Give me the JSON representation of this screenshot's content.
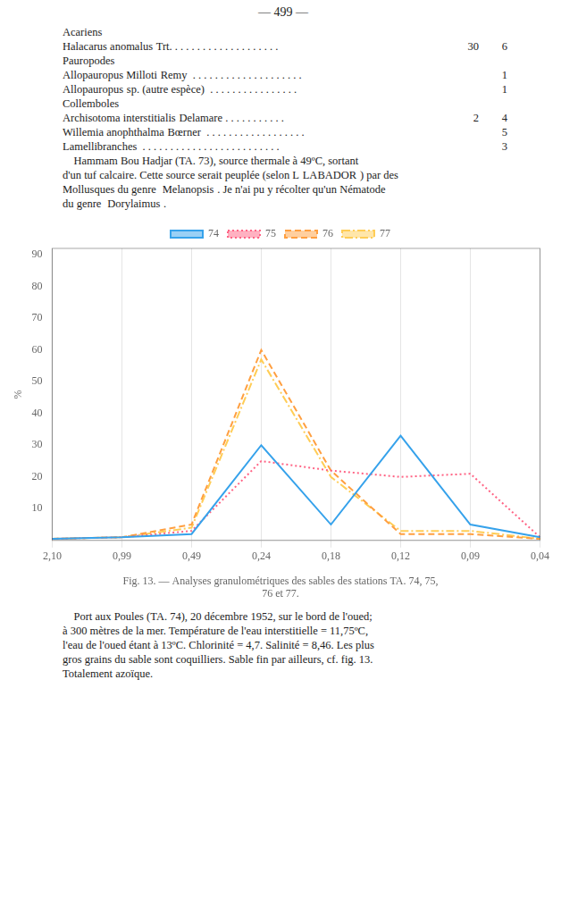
{
  "chart_data": {
    "type": "line",
    "title": [
      "Fig. 13. — Analyses granulométriques des sables des stations TA. 74, 75,",
      "76 et 77."
    ],
    "ylabel": "%",
    "categories": [
      "2,10",
      "0,99",
      "0,49",
      "0,24",
      "0,18",
      "0,12",
      "0,09",
      "0,04"
    ],
    "series": [
      {
        "name": "74",
        "line_style": "solid",
        "values": [
          0.5,
          1,
          2,
          30,
          5,
          33,
          5,
          1
        ]
      },
      {
        "name": "75",
        "line_style": "dotted",
        "values": [
          0.5,
          1,
          3,
          25,
          22,
          20,
          21,
          1
        ]
      },
      {
        "name": "76",
        "line_style": "dashed",
        "values": [
          0.5,
          1,
          5,
          60,
          22,
          2,
          2,
          0.5
        ]
      },
      {
        "name": "77",
        "line_style": "dashdot",
        "values": [
          0.5,
          1,
          4,
          57,
          20,
          3,
          3,
          0.5
        ]
      }
    ],
    "ylim": [
      0,
      92
    ],
    "yticks": [
      10,
      20,
      30,
      40,
      50,
      60,
      70,
      80,
      90
    ],
    "grid": "x",
    "legend": "top",
    "annotations": [
      [
        [
          "— 499 —"
        ],
        [
          "Acariens"
        ],
        [
          "Halacarus anomalus",
          "Trt. . . . . . . . . . . . . . . . . . . .",
          "30",
          "6"
        ],
        [
          "Pauropodes"
        ],
        [
          "Allopauropus Milloti",
          "Remy  . . . . . . . . . . . . . . . . . . . .",
          "1"
        ],
        [
          "Allopauropus",
          "sp. (autre espèce)  . . . . . . . . . . . . . . . .",
          "1"
        ],
        [
          "Collemboles"
        ],
        [
          "Archisotoma interstitialis",
          "Delamare . . . . . . . . . . .",
          "2",
          "4"
        ],
        [
          "Willemia anophthalma",
          "Bœrner  . . . . . . . . . . . . . . . . . .",
          "5"
        ],
        [
          "Lamellibranches  . . . . . . . . . . . . . . . . . . . . . . . . .",
          "3"
        ],
        [
          "    Hammam Bou Hadjar (TA. 73), source thermale à 49ºC, sortant"
        ],
        [
          "d'un tuf calcaire. Cette source serait peuplée (selon L",
          "LABADOR",
          ") par des"
        ],
        [
          "Mollusques du genre ",
          "Melanopsis",
          ". Je n'ai pu y récolter qu'un Nématode"
        ],
        [
          "du genre ",
          "Dorylaimus",
          "."
        ]
      ],
      [
        [
          "    Port aux Poules (TA. 74), 20 décembre 1952, sur le bord de l'oued;"
        ],
        [
          "à 300 mètres de la mer. Température de l'eau interstitielle = 11,75ºC,"
        ],
        [
          "l'eau de l'oued étant à 13ºC. Chlorinité = 4,7. Salinité = 8,46. Les plus"
        ],
        [
          "gros grains du sable sont coquilliers. Sable fin par ailleurs, cf. fig. 13."
        ],
        [
          "Totalement azoïque."
        ]
      ]
    ]
  }
}
